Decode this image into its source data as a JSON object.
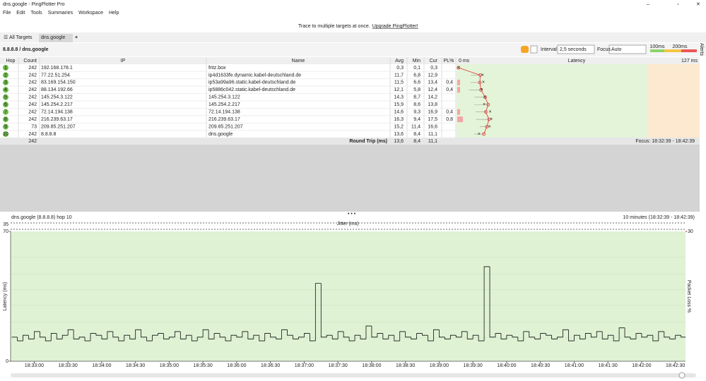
{
  "window": {
    "title": "dns.google - PingPlotter Pro"
  },
  "menu": [
    "File",
    "Edit",
    "Tools",
    "Summaries",
    "Workspace",
    "Help"
  ],
  "tabs": [
    "All Targets",
    "dns.google"
  ],
  "banner": {
    "text": "Trace to multiple targets at once.",
    "link": "Upgrade PingPlotter!"
  },
  "breadcrumb": "8.8.8.8 / dns.google",
  "toolbar": {
    "interval_label": "Interval",
    "interval": "2,5 seconds",
    "focus_label": "Focus",
    "focus": "Auto",
    "scale_labels": [
      "100ms",
      "200ms"
    ]
  },
  "side_tab": "Alerts",
  "table": {
    "columns": [
      "Hop",
      "Count",
      "IP",
      "Name",
      "Avg",
      "Min",
      "Cur",
      "PL%",
      "Latency"
    ],
    "latency_range": [
      "0 ms",
      "127 ms"
    ],
    "rows": [
      {
        "hop": "1",
        "count": "242",
        "ip": "192.168.178.1",
        "name": "fritz.box",
        "avg": "0,3",
        "min": "0,1",
        "cur": "0,3"
      },
      {
        "hop": "2",
        "count": "242",
        "ip": "77.22.51.254",
        "name": "ip4d1633fe.dynamic.kabel-deutschland.de",
        "avg": "11,7",
        "min": "6,8",
        "cur": "12,9"
      },
      {
        "hop": "3",
        "count": "242",
        "ip": "83.169.154.150",
        "name": "ip53a99a96.static.kabel-deutschland.de",
        "avg": "11,5",
        "min": "6,6",
        "cur": "13,4",
        "pl": "0,4"
      },
      {
        "hop": "4",
        "count": "242",
        "ip": "88.134.192.66",
        "name": "ip5886c042.static.kabel-deutschland.de",
        "avg": "12,1",
        "min": "5,8",
        "cur": "12,4",
        "pl": "0,4"
      },
      {
        "hop": "5",
        "count": "242",
        "ip": "145.254.3.122",
        "name": "145.254.3.122",
        "avg": "14,3",
        "min": "8,7",
        "cur": "14,2"
      },
      {
        "hop": "6",
        "count": "242",
        "ip": "145.254.2.217",
        "name": "145.254.2.217",
        "avg": "15,9",
        "min": "8,6",
        "cur": "13,8"
      },
      {
        "hop": "7",
        "count": "242",
        "ip": "72.14.194.138",
        "name": "72.14.194.138",
        "avg": "14,6",
        "min": "9,3",
        "cur": "16,9",
        "pl": "0,4"
      },
      {
        "hop": "8",
        "count": "242",
        "ip": "216.239.63.17",
        "name": "216.239.63.17",
        "avg": "16,3",
        "min": "9,4",
        "cur": "17,5",
        "pl": "0,8"
      },
      {
        "hop": "9",
        "count": "73",
        "ip": "209.85.251.207",
        "name": "209.85.251.207",
        "avg": "15,2",
        "min": "11,4",
        "cur": "16,6"
      },
      {
        "hop": "10",
        "count": "242",
        "ip": "8.8.8.8",
        "name": "dns.google",
        "avg": "13,6",
        "min": "8,4",
        "cur": "11,1"
      }
    ],
    "summary": {
      "count": "242",
      "label": "Round Trip (ms)",
      "avg": "13,6",
      "min": "8,4",
      "cur": "11,1",
      "focus": "Focus: 18:32:39 - 18:42:39"
    }
  },
  "chart_data": {
    "type": "step",
    "title": "dns.google (8.8.8.8) hop 10",
    "range_label": "10 minutes (18:32:39 - 18:42:39)",
    "y_label": "Latency (ms)",
    "y2_label": "Packet Loss %",
    "jitter_label": "Jitter (ms)",
    "jitter_max": 35,
    "color": "#111111",
    "x": [
      "18:32:40",
      "18:32:45",
      "18:32:50",
      "18:32:55",
      "18:33:00",
      "18:33:05",
      "18:33:10",
      "18:33:15",
      "18:33:20",
      "18:33:25",
      "18:33:30",
      "18:33:35",
      "18:33:40",
      "18:33:45",
      "18:33:50",
      "18:33:55",
      "18:34:00",
      "18:34:05",
      "18:34:10",
      "18:34:15",
      "18:34:20",
      "18:34:25",
      "18:34:30",
      "18:34:35",
      "18:34:40",
      "18:34:45",
      "18:34:50",
      "18:34:55",
      "18:35:00",
      "18:35:05",
      "18:35:10",
      "18:35:15",
      "18:35:20",
      "18:35:25",
      "18:35:30",
      "18:35:35",
      "18:35:40",
      "18:35:45",
      "18:35:50",
      "18:35:55",
      "18:36:00",
      "18:36:05",
      "18:36:10",
      "18:36:15",
      "18:36:20",
      "18:36:25",
      "18:36:30",
      "18:36:35",
      "18:36:40",
      "18:36:45",
      "18:36:50",
      "18:36:55",
      "18:37:00",
      "18:37:05",
      "18:37:10",
      "18:37:15",
      "18:37:20",
      "18:37:25",
      "18:37:30",
      "18:37:35",
      "18:37:40",
      "18:37:45",
      "18:37:50",
      "18:37:55",
      "18:38:00",
      "18:38:05",
      "18:38:10",
      "18:38:15",
      "18:38:20",
      "18:38:25",
      "18:38:30",
      "18:38:35",
      "18:38:40",
      "18:38:45",
      "18:38:50",
      "18:38:55",
      "18:39:00",
      "18:39:05",
      "18:39:10",
      "18:39:15",
      "18:39:20",
      "18:39:25",
      "18:39:30",
      "18:39:35",
      "18:39:40",
      "18:39:45",
      "18:39:50",
      "18:39:55",
      "18:40:00",
      "18:40:05",
      "18:40:10",
      "18:40:15",
      "18:40:20",
      "18:40:25",
      "18:40:30",
      "18:40:35",
      "18:40:40",
      "18:40:45",
      "18:40:50",
      "18:40:55",
      "18:41:00",
      "18:41:05",
      "18:41:10",
      "18:41:15",
      "18:41:20",
      "18:41:25",
      "18:41:30",
      "18:41:35",
      "18:41:40",
      "18:41:45",
      "18:41:50",
      "18:41:55",
      "18:42:00",
      "18:42:05",
      "18:42:10",
      "18:42:15",
      "18:42:20",
      "18:42:25",
      "18:42:30",
      "18:42:35"
    ],
    "values": [
      13,
      11,
      14,
      12,
      16,
      13,
      11,
      15,
      12,
      14,
      17,
      12,
      13,
      11,
      15,
      14,
      12,
      16,
      13,
      11,
      14,
      12,
      17,
      13,
      11,
      14,
      15,
      12,
      13,
      16,
      12,
      14,
      11,
      13,
      17,
      12,
      15,
      13,
      11,
      14,
      13,
      16,
      12,
      14,
      11,
      15,
      13,
      12,
      17,
      14,
      12,
      13,
      15,
      11,
      42,
      13,
      14,
      12,
      16,
      13,
      11,
      14,
      12,
      19,
      13,
      15,
      12,
      14,
      11,
      16,
      13,
      12,
      15,
      14,
      11,
      17,
      13,
      12,
      14,
      13,
      16,
      12,
      14,
      11,
      51,
      13,
      15,
      12,
      14,
      13,
      11,
      16,
      13,
      12,
      15,
      14,
      12,
      13,
      17,
      11,
      14,
      12,
      15,
      13,
      16,
      12,
      14,
      11,
      18,
      13,
      12,
      15,
      13,
      14,
      11,
      16,
      13,
      12,
      14,
      13
    ],
    "xlim": [
      "18:32:39",
      "18:42:39"
    ],
    "xticks": [
      "18:33:00",
      "18:33:30",
      "18:34:00",
      "18:34:30",
      "18:35:00",
      "18:35:30",
      "18:36:00",
      "18:36:30",
      "18:37:00",
      "18:37:30",
      "18:38:00",
      "18:38:30",
      "18:39:00",
      "18:39:30",
      "18:40:00",
      "18:40:30",
      "18:41:00",
      "18:41:30",
      "18:42:00",
      "18:42:30"
    ],
    "ylim": [
      0,
      70
    ],
    "yticks": [
      0,
      70
    ],
    "y2lim": [
      0,
      30
    ],
    "y2ticks": [
      30
    ],
    "grid": true
  }
}
